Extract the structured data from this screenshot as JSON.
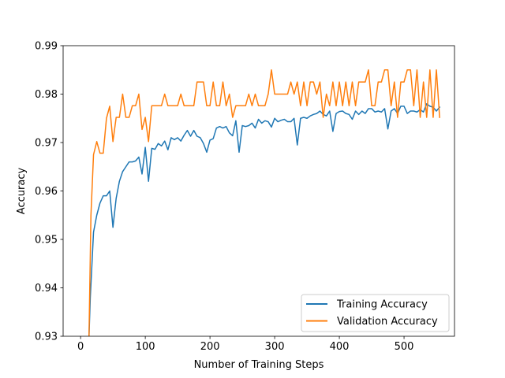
{
  "chart_data": {
    "type": "line",
    "title": "",
    "xlabel": "Number of Training Steps",
    "ylabel": "Accuracy",
    "xlim": [
      -27,
      578
    ],
    "ylim": [
      0.93,
      0.99
    ],
    "xticks": [
      0,
      100,
      200,
      300,
      400,
      500
    ],
    "yticks": [
      0.93,
      0.94,
      0.95,
      0.96,
      0.97,
      0.98,
      0.99
    ],
    "ytick_labels": [
      "0.93",
      "0.94",
      "0.95",
      "0.96",
      "0.97",
      "0.98",
      "0.99"
    ],
    "grid": false,
    "legend_position": "lower-right",
    "series": [
      {
        "name": "Training Accuracy",
        "color": "#1f77b4",
        "points": [
          [
            13,
            0.93
          ],
          [
            15,
            0.938
          ],
          [
            20,
            0.9515
          ],
          [
            25,
            0.955
          ],
          [
            30,
            0.9575
          ],
          [
            35,
            0.959
          ],
          [
            40,
            0.959
          ],
          [
            45,
            0.96
          ],
          [
            50,
            0.9525
          ],
          [
            55,
            0.9585
          ],
          [
            60,
            0.962
          ],
          [
            65,
            0.964
          ],
          [
            70,
            0.965
          ],
          [
            75,
            0.966
          ],
          [
            80,
            0.966
          ],
          [
            85,
            0.9662
          ],
          [
            90,
            0.967
          ],
          [
            95,
            0.9635
          ],
          [
            100,
            0.969
          ],
          [
            105,
            0.962
          ],
          [
            110,
            0.9688
          ],
          [
            115,
            0.9686
          ],
          [
            120,
            0.9698
          ],
          [
            125,
            0.9693
          ],
          [
            130,
            0.9703
          ],
          [
            135,
            0.9685
          ],
          [
            140,
            0.971
          ],
          [
            145,
            0.9706
          ],
          [
            150,
            0.971
          ],
          [
            155,
            0.9703
          ],
          [
            160,
            0.9715
          ],
          [
            165,
            0.9725
          ],
          [
            170,
            0.9713
          ],
          [
            175,
            0.9725
          ],
          [
            180,
            0.9713
          ],
          [
            185,
            0.971
          ],
          [
            190,
            0.9698
          ],
          [
            195,
            0.968
          ],
          [
            200,
            0.9705
          ],
          [
            205,
            0.9708
          ],
          [
            210,
            0.973
          ],
          [
            215,
            0.9733
          ],
          [
            220,
            0.973
          ],
          [
            225,
            0.9733
          ],
          [
            230,
            0.972
          ],
          [
            235,
            0.9714
          ],
          [
            240,
            0.9745
          ],
          [
            245,
            0.968
          ],
          [
            250,
            0.9735
          ],
          [
            255,
            0.9733
          ],
          [
            260,
            0.9735
          ],
          [
            265,
            0.974
          ],
          [
            270,
            0.973
          ],
          [
            275,
            0.9748
          ],
          [
            280,
            0.974
          ],
          [
            285,
            0.9745
          ],
          [
            290,
            0.9743
          ],
          [
            295,
            0.9732
          ],
          [
            300,
            0.975
          ],
          [
            305,
            0.9743
          ],
          [
            310,
            0.9746
          ],
          [
            315,
            0.9748
          ],
          [
            320,
            0.9743
          ],
          [
            325,
            0.9743
          ],
          [
            330,
            0.975
          ],
          [
            335,
            0.9695
          ],
          [
            340,
            0.975
          ],
          [
            345,
            0.9752
          ],
          [
            350,
            0.975
          ],
          [
            355,
            0.9755
          ],
          [
            360,
            0.9758
          ],
          [
            365,
            0.976
          ],
          [
            370,
            0.9765
          ],
          [
            375,
            0.9758
          ],
          [
            380,
            0.9755
          ],
          [
            385,
            0.9765
          ],
          [
            390,
            0.9723
          ],
          [
            395,
            0.976
          ],
          [
            400,
            0.9764
          ],
          [
            405,
            0.9765
          ],
          [
            410,
            0.976
          ],
          [
            415,
            0.9758
          ],
          [
            420,
            0.9748
          ],
          [
            425,
            0.9765
          ],
          [
            430,
            0.9758
          ],
          [
            435,
            0.9765
          ],
          [
            440,
            0.976
          ],
          [
            445,
            0.977
          ],
          [
            450,
            0.977
          ],
          [
            455,
            0.9763
          ],
          [
            460,
            0.9765
          ],
          [
            465,
            0.9763
          ],
          [
            470,
            0.977
          ],
          [
            475,
            0.9728
          ],
          [
            480,
            0.9765
          ],
          [
            485,
            0.977
          ],
          [
            490,
            0.976
          ],
          [
            495,
            0.9775
          ],
          [
            500,
            0.9775
          ],
          [
            505,
            0.976
          ],
          [
            510,
            0.9765
          ],
          [
            515,
            0.9765
          ],
          [
            520,
            0.9763
          ],
          [
            525,
            0.9768
          ],
          [
            530,
            0.9763
          ],
          [
            535,
            0.978
          ],
          [
            540,
            0.9775
          ],
          [
            545,
            0.9773
          ],
          [
            550,
            0.9765
          ],
          [
            555,
            0.9773
          ]
        ]
      },
      {
        "name": "Validation Accuracy",
        "color": "#ff7f0e",
        "points": [
          [
            13,
            0.93
          ],
          [
            16,
            0.955
          ],
          [
            20,
            0.9675
          ],
          [
            25,
            0.9702
          ],
          [
            30,
            0.9678
          ],
          [
            35,
            0.9678
          ],
          [
            40,
            0.975
          ],
          [
            45,
            0.9775
          ],
          [
            50,
            0.9702
          ],
          [
            55,
            0.9752
          ],
          [
            60,
            0.9752
          ],
          [
            65,
            0.98
          ],
          [
            70,
            0.9752
          ],
          [
            75,
            0.9752
          ],
          [
            80,
            0.9776
          ],
          [
            85,
            0.9776
          ],
          [
            90,
            0.98
          ],
          [
            95,
            0.9727
          ],
          [
            100,
            0.9752
          ],
          [
            105,
            0.9702
          ],
          [
            110,
            0.9776
          ],
          [
            115,
            0.9776
          ],
          [
            120,
            0.9776
          ],
          [
            125,
            0.9776
          ],
          [
            130,
            0.98
          ],
          [
            135,
            0.9776
          ],
          [
            140,
            0.9776
          ],
          [
            145,
            0.9776
          ],
          [
            150,
            0.9776
          ],
          [
            155,
            0.98
          ],
          [
            160,
            0.9776
          ],
          [
            165,
            0.9776
          ],
          [
            170,
            0.9776
          ],
          [
            175,
            0.9776
          ],
          [
            180,
            0.9825
          ],
          [
            185,
            0.9825
          ],
          [
            190,
            0.9825
          ],
          [
            195,
            0.9776
          ],
          [
            200,
            0.9776
          ],
          [
            205,
            0.9825
          ],
          [
            210,
            0.9776
          ],
          [
            215,
            0.9776
          ],
          [
            220,
            0.9825
          ],
          [
            225,
            0.9776
          ],
          [
            230,
            0.98
          ],
          [
            235,
            0.9752
          ],
          [
            240,
            0.9776
          ],
          [
            245,
            0.9776
          ],
          [
            250,
            0.9776
          ],
          [
            255,
            0.9776
          ],
          [
            260,
            0.98
          ],
          [
            265,
            0.9776
          ],
          [
            270,
            0.98
          ],
          [
            275,
            0.9776
          ],
          [
            280,
            0.9776
          ],
          [
            285,
            0.9776
          ],
          [
            290,
            0.98
          ],
          [
            295,
            0.985
          ],
          [
            300,
            0.98
          ],
          [
            305,
            0.98
          ],
          [
            310,
            0.98
          ],
          [
            315,
            0.98
          ],
          [
            320,
            0.98
          ],
          [
            325,
            0.9825
          ],
          [
            330,
            0.98
          ],
          [
            335,
            0.9825
          ],
          [
            340,
            0.9776
          ],
          [
            345,
            0.9825
          ],
          [
            350,
            0.9776
          ],
          [
            355,
            0.9825
          ],
          [
            360,
            0.9825
          ],
          [
            365,
            0.98
          ],
          [
            370,
            0.9825
          ],
          [
            375,
            0.9752
          ],
          [
            380,
            0.98
          ],
          [
            385,
            0.9776
          ],
          [
            390,
            0.9825
          ],
          [
            395,
            0.9776
          ],
          [
            400,
            0.9825
          ],
          [
            405,
            0.9776
          ],
          [
            410,
            0.9825
          ],
          [
            415,
            0.9776
          ],
          [
            420,
            0.9825
          ],
          [
            425,
            0.9776
          ],
          [
            430,
            0.9825
          ],
          [
            435,
            0.9825
          ],
          [
            440,
            0.9825
          ],
          [
            445,
            0.985
          ],
          [
            450,
            0.9776
          ],
          [
            455,
            0.9776
          ],
          [
            460,
            0.9825
          ],
          [
            465,
            0.9825
          ],
          [
            470,
            0.985
          ],
          [
            475,
            0.985
          ],
          [
            480,
            0.9776
          ],
          [
            485,
            0.9825
          ],
          [
            490,
            0.9752
          ],
          [
            495,
            0.9825
          ],
          [
            500,
            0.9825
          ],
          [
            505,
            0.985
          ],
          [
            510,
            0.985
          ],
          [
            515,
            0.9776
          ],
          [
            520,
            0.985
          ],
          [
            525,
            0.9752
          ],
          [
            530,
            0.9825
          ],
          [
            535,
            0.9752
          ],
          [
            540,
            0.985
          ],
          [
            545,
            0.9752
          ],
          [
            550,
            0.985
          ],
          [
            555,
            0.9752
          ]
        ]
      }
    ]
  }
}
